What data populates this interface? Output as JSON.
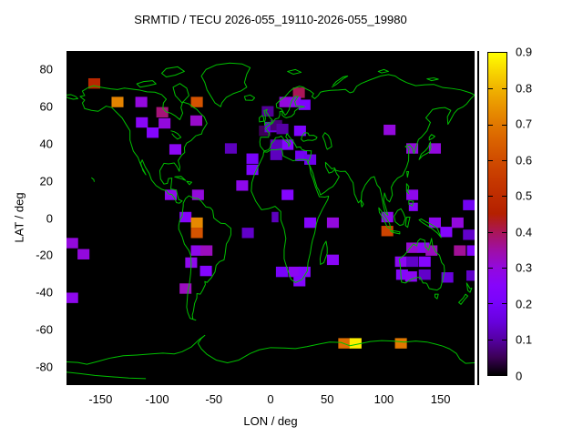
{
  "title": "SRMTID / TECU 2026-055_19110-2026-055_19980",
  "axes": {
    "x_label": "LON / deg",
    "y_label": "LAT / deg",
    "x_ticks": [
      -150,
      -100,
      -50,
      0,
      50,
      100,
      150
    ],
    "y_ticks": [
      80,
      60,
      40,
      20,
      0,
      -20,
      -40,
      -60,
      -80
    ],
    "x_range": [
      -180,
      180
    ],
    "y_range": [
      -90,
      90
    ]
  },
  "colorbar": {
    "ticks": [
      0.9,
      0.8,
      0.7,
      0.6,
      0.5,
      0.4,
      0.3,
      0.2,
      0.1,
      0
    ],
    "range": [
      0,
      0.9
    ],
    "palette": "gnuplot pm3d rgbformulae 7,5,15 (black-violet-red-orange-yellow)"
  },
  "colors": {
    "page_background": "#ffffff",
    "plot_background": "#000000",
    "coastline": "#00c000",
    "text": "#000000"
  },
  "chart_data": {
    "type": "heatmap",
    "title": "SRMTID / TECU 2026-055_19110-2026-055_19980",
    "xlabel": "LON / deg",
    "ylabel": "LAT / deg",
    "xlim": [
      -180,
      180
    ],
    "ylim": [
      -90,
      90
    ],
    "zlim": [
      0,
      0.9
    ],
    "grid": false,
    "legend_position": "right-colorbar",
    "cell_size_deg": {
      "lon": 10.5,
      "lat": 5.6
    },
    "cells_columns": [
      "lon",
      "lat",
      "tecu",
      "optional_w_deg",
      "optional_h_deg"
    ],
    "cells": [
      [
        -155.5,
        72.5,
        0.48
      ],
      [
        -135,
        62.5,
        0.72
      ],
      [
        -114,
        62.5,
        0.3
      ],
      [
        -95.5,
        57,
        0.38
      ],
      [
        -113.5,
        51.5,
        0.26
      ],
      [
        -104,
        46,
        0.24
      ],
      [
        -93.5,
        51,
        0.3
      ],
      [
        -65,
        62.5,
        0.62
      ],
      [
        -65.5,
        52.5,
        0.32
      ],
      [
        -84,
        37,
        0.27
      ],
      [
        -35,
        37.5,
        0.12
      ],
      [
        -5,
        47,
        0.05
      ],
      [
        0,
        49,
        0.15
      ],
      [
        25,
        67.5,
        0.4
      ],
      [
        13,
        62.5,
        0.3
      ],
      [
        21.5,
        62.5,
        0.28
      ],
      [
        30,
        61,
        0.22
      ],
      [
        -2.5,
        57.5,
        0.09
      ],
      [
        5,
        50,
        0.07
      ],
      [
        10.5,
        48,
        0.1
      ],
      [
        26,
        47,
        0.22
      ],
      [
        15,
        39.5,
        0.24
      ],
      [
        5,
        39.5,
        0.12
      ],
      [
        5,
        34,
        0.12
      ],
      [
        27,
        33.5,
        0.18
      ],
      [
        35,
        31.5,
        0.17
      ],
      [
        -16,
        32,
        0.2
      ],
      [
        -16,
        26,
        0.22
      ],
      [
        105,
        47.5,
        0.3
      ],
      [
        125,
        37.5,
        0.3
      ],
      [
        145,
        37.5,
        0.3
      ],
      [
        -175,
        -13.5,
        0.3
      ],
      [
        -165,
        -19.5,
        0.3
      ],
      [
        -25,
        17.5,
        0.28
      ],
      [
        -64,
        12.5,
        0.3
      ],
      [
        -88,
        12.5,
        0.28
      ],
      [
        -75,
        0.5,
        0.25
      ],
      [
        -65,
        -2.5,
        0.73
      ],
      [
        -65,
        -8,
        0.62
      ],
      [
        -65,
        -17.5,
        0.28
      ],
      [
        -56.5,
        -17.5,
        0.33
      ],
      [
        -70,
        -24,
        0.28
      ],
      [
        -57,
        -28.5,
        0.24
      ],
      [
        -20,
        -8,
        0.13
      ],
      [
        15,
        12.5,
        0.24
      ],
      [
        4,
        0.5,
        0.12,
        6,
        5.6
      ],
      [
        35,
        -2.5,
        0.24
      ],
      [
        55,
        -2.5,
        0.3
      ],
      [
        55,
        -22.5,
        0.26
      ],
      [
        103,
        0.5,
        0.28
      ],
      [
        103,
        -7,
        0.58
      ],
      [
        125,
        12.5,
        0.28
      ],
      [
        126,
        6,
        0.26,
        8,
        4.5
      ],
      [
        145,
        -2.5,
        0.28
      ],
      [
        155,
        -7.5,
        0.24
      ],
      [
        165,
        -2.5,
        0.3
      ],
      [
        175,
        7,
        0.18
      ],
      [
        175,
        -9,
        0.13
      ],
      [
        167,
        -17.5,
        0.36
      ],
      [
        178.5,
        -17.5,
        0.24
      ],
      [
        125,
        -16,
        0.31
      ],
      [
        135,
        -16,
        0.27
      ],
      [
        142,
        -17.5,
        0.33
      ],
      [
        115,
        -23.5,
        0.27
      ],
      [
        125,
        -23.5,
        0.13
      ],
      [
        136,
        -23.5,
        0.24
      ],
      [
        116,
        -30.5,
        0.24
      ],
      [
        124,
        -31.5,
        0.27
      ],
      [
        136,
        -30.5,
        0.13
      ],
      [
        156,
        -32,
        0.15
      ],
      [
        178,
        -31,
        0.13
      ],
      [
        10,
        -29,
        0.2
      ],
      [
        21,
        -29,
        0.27
      ],
      [
        30,
        -29,
        0.24
      ],
      [
        25.5,
        -34,
        0.24
      ],
      [
        -175,
        -43,
        0.28
      ],
      [
        -75,
        -38,
        0.33
      ],
      [
        65,
        -67.5,
        0.68
      ],
      [
        75,
        -67.5,
        0.88
      ],
      [
        115,
        -67.5,
        0.7
      ]
    ]
  }
}
